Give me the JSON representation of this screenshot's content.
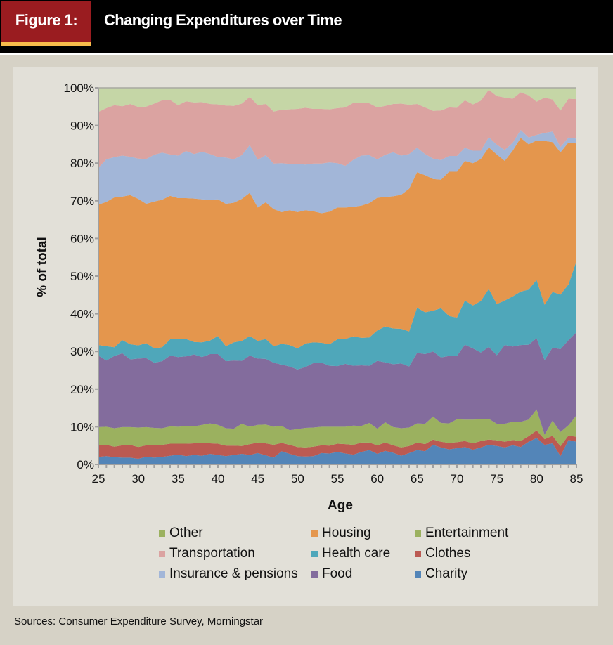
{
  "header": {
    "figure_label": "Figure 1:",
    "title": "Changing Expenditures over Time",
    "colors": {
      "label_bg": "#9a1c20",
      "label_underline": "#f7bc4c",
      "bar_bg": "#000000"
    }
  },
  "sources": "Sources: Consumer Expenditure Survey, Morningstar",
  "chart_data": {
    "type": "area",
    "stacked": true,
    "normalized": "percent",
    "title": "Changing Expenditures over Time",
    "xlabel": "Age",
    "ylabel": "% of total",
    "xlim": [
      25,
      85
    ],
    "ylim": [
      0,
      100
    ],
    "x_ticks": [
      25,
      30,
      35,
      40,
      45,
      50,
      55,
      60,
      65,
      70,
      75,
      80,
      85
    ],
    "x_tick_labels": [
      "25",
      "30",
      "35",
      "40",
      "45",
      "50",
      "55",
      "60",
      "65",
      "70",
      "75",
      "80",
      "85"
    ],
    "y_ticks": [
      0,
      10,
      20,
      30,
      40,
      50,
      60,
      70,
      80,
      90,
      100
    ],
    "y_tick_labels": [
      "0%",
      "10%",
      "20%",
      "30%",
      "40%",
      "50%",
      "60%",
      "70%",
      "80%",
      "90%",
      "100%"
    ],
    "grid": false,
    "legend": {
      "placement": "bottom",
      "columns": 3,
      "order": [
        "Other",
        "Housing",
        "Entertainment",
        "Transportation",
        "Health care",
        "Clothes",
        "Insurance & pensions",
        "Food",
        "Charity"
      ]
    },
    "x": [
      25,
      26,
      27,
      28,
      29,
      30,
      31,
      32,
      33,
      34,
      35,
      36,
      37,
      38,
      39,
      40,
      41,
      42,
      43,
      44,
      45,
      46,
      47,
      48,
      49,
      50,
      51,
      52,
      53,
      54,
      55,
      56,
      57,
      58,
      59,
      60,
      61,
      62,
      63,
      64,
      65,
      66,
      67,
      68,
      69,
      70,
      71,
      72,
      73,
      74,
      75,
      76,
      77,
      78,
      79,
      80,
      81,
      82,
      83,
      84,
      85
    ],
    "series_stack_order": [
      "Charity",
      "Clothes",
      "Entertainment",
      "Food",
      "Health care",
      "Housing",
      "Insurance & pensions",
      "Transportation",
      "Other"
    ],
    "series": [
      {
        "name": "Charity",
        "color": "#5385b8",
        "legend_color": "#5385b8",
        "values": [
          2.0,
          2.2,
          1.9,
          1.8,
          1.8,
          1.5,
          2.0,
          1.8,
          2.0,
          2.3,
          2.6,
          2.2,
          2.5,
          2.3,
          2.8,
          2.5,
          2.2,
          2.5,
          2.8,
          2.5,
          3.0,
          2.4,
          1.8,
          3.5,
          2.8,
          2.2,
          2.1,
          2.2,
          3.0,
          2.9,
          3.3,
          2.9,
          2.6,
          3.3,
          3.8,
          2.8,
          3.6,
          3.1,
          2.3,
          3.0,
          3.8,
          3.5,
          5.2,
          4.5,
          4.0,
          4.3,
          4.6,
          3.9,
          4.5,
          5.2,
          4.9,
          4.5,
          5.1,
          4.6,
          6.0,
          7.0,
          5.2,
          5.6,
          2.2,
          6.5,
          6.0
        ]
      },
      {
        "name": "Clothes",
        "color": "#bb5a52",
        "legend_color": "#bb5a52",
        "values": [
          3.2,
          3.0,
          2.8,
          3.3,
          3.4,
          3.1,
          3.1,
          3.4,
          3.2,
          3.2,
          2.9,
          3.3,
          3.1,
          3.3,
          2.8,
          3.0,
          2.8,
          2.5,
          2.1,
          2.9,
          2.8,
          3.2,
          3.4,
          2.2,
          2.4,
          2.4,
          2.4,
          2.5,
          2.1,
          2.1,
          2.2,
          2.5,
          2.6,
          2.5,
          2.0,
          2.3,
          2.2,
          2.0,
          2.2,
          1.9,
          2.0,
          1.9,
          1.4,
          1.5,
          1.7,
          1.6,
          1.6,
          1.7,
          1.7,
          1.4,
          1.5,
          1.5,
          1.4,
          1.6,
          1.5,
          2.0,
          1.5,
          2.0,
          2.6,
          1.2,
          1.3
        ]
      },
      {
        "name": "Entertainment",
        "color": "#9bb15f",
        "legend_color": "#9bb15f",
        "values": [
          4.7,
          4.8,
          4.9,
          4.8,
          4.7,
          5.2,
          4.8,
          4.5,
          4.4,
          4.6,
          4.5,
          4.7,
          4.5,
          4.9,
          5.3,
          5.0,
          4.6,
          4.5,
          5.9,
          4.6,
          4.7,
          5.0,
          4.8,
          4.5,
          3.9,
          4.8,
          5.2,
          5.1,
          4.9,
          5.0,
          4.5,
          4.6,
          5.1,
          4.4,
          5.2,
          4.4,
          5.4,
          4.8,
          5.1,
          4.9,
          5.1,
          5.4,
          6.1,
          5.0,
          5.2,
          6.1,
          5.7,
          6.3,
          5.8,
          5.5,
          4.4,
          4.8,
          4.8,
          5.1,
          4.4,
          5.6,
          1.2,
          4.0,
          3.8,
          2.7,
          5.7
        ]
      },
      {
        "name": "Food",
        "color": "#836c9d",
        "legend_color": "#836c9d",
        "values": [
          19.0,
          17.6,
          19.2,
          19.6,
          18.0,
          18.3,
          18.3,
          17.3,
          17.8,
          18.8,
          18.5,
          18.5,
          19.1,
          18.0,
          18.4,
          18.8,
          17.8,
          18.1,
          16.7,
          18.9,
          17.6,
          17.4,
          17.0,
          16.3,
          16.9,
          15.8,
          16.2,
          17.1,
          17.0,
          16.2,
          16.1,
          16.7,
          15.9,
          16.1,
          15.2,
          18.0,
          15.9,
          16.7,
          17.2,
          16.2,
          18.7,
          18.5,
          17.3,
          17.4,
          17.9,
          16.8,
          19.9,
          18.9,
          17.7,
          19.1,
          18.2,
          20.9,
          20.0,
          20.4,
          19.9,
          18.9,
          19.8,
          19.4,
          22.0,
          22.6,
          22.1
        ]
      },
      {
        "name": "Health care",
        "color": "#4fa7ba",
        "legend_color": "#4fa7ba",
        "values": [
          2.8,
          3.8,
          2.3,
          3.5,
          4.0,
          3.5,
          4.0,
          3.8,
          3.7,
          4.3,
          4.7,
          4.6,
          3.3,
          3.9,
          3.6,
          4.8,
          4.0,
          4.8,
          5.3,
          5.2,
          4.7,
          5.3,
          4.4,
          5.5,
          5.7,
          5.6,
          6.2,
          5.5,
          5.3,
          5.7,
          7.1,
          6.6,
          7.8,
          7.3,
          7.5,
          8.1,
          9.5,
          9.5,
          9.2,
          9.3,
          12.0,
          11.1,
          10.8,
          13.1,
          10.6,
          10.2,
          11.7,
          11.4,
          13.7,
          15.4,
          13.6,
          11.8,
          13.3,
          14.2,
          14.6,
          15.5,
          14.7,
          14.8,
          14.5,
          14.8,
          18.9
        ]
      },
      {
        "name": "Housing",
        "color": "#e4964d",
        "legend_color": "#e4964d",
        "values": [
          37.3,
          38.3,
          39.8,
          38.1,
          39.6,
          38.9,
          37.0,
          39.0,
          39.2,
          38.1,
          37.5,
          37.4,
          38.1,
          38.0,
          37.4,
          36.3,
          37.8,
          37.1,
          37.7,
          38.0,
          35.4,
          36.3,
          36.4,
          35.0,
          35.8,
          36.2,
          35.4,
          34.8,
          34.4,
          35.2,
          35.0,
          34.9,
          34.4,
          35.1,
          35.7,
          35.2,
          34.4,
          35.1,
          35.6,
          37.9,
          36.0,
          36.4,
          35.0,
          34.1,
          38.3,
          38.7,
          37.1,
          37.8,
          37.7,
          37.6,
          39.7,
          37.1,
          38.7,
          40.8,
          38.6,
          37.0,
          43.5,
          39.8,
          37.8,
          37.7,
          31.2
        ]
      },
      {
        "name": "Insurance & pensions",
        "color": "#a2b6d8",
        "legend_color": "#a2b6d8",
        "values": [
          9.8,
          11.3,
          10.7,
          10.9,
          10.2,
          10.7,
          11.9,
          12.4,
          12.5,
          11.0,
          11.3,
          12.5,
          11.8,
          12.6,
          12.1,
          11.2,
          12.3,
          11.5,
          11.6,
          12.7,
          12.7,
          12.5,
          12.1,
          13.0,
          12.3,
          12.8,
          12.1,
          12.7,
          13.2,
          13.1,
          11.8,
          11.1,
          12.5,
          13.3,
          12.7,
          10.2,
          11.2,
          11.7,
          10.4,
          9.2,
          6.5,
          5.6,
          5.4,
          5.2,
          4.2,
          4.2,
          3.5,
          3.3,
          2.2,
          2.7,
          2.6,
          2.9,
          2.1,
          2.1,
          1.8,
          1.5,
          2.1,
          2.8,
          1.4,
          1.3,
          1.3
        ]
      },
      {
        "name": "Transportation",
        "color": "#dba3a1",
        "legend_color": "#dba3a1",
        "values": [
          14.8,
          13.6,
          13.8,
          13.1,
          14.0,
          13.7,
          13.9,
          13.6,
          13.9,
          14.5,
          13.4,
          13.2,
          13.7,
          13.2,
          13.3,
          14.0,
          13.8,
          14.2,
          13.7,
          12.8,
          14.5,
          13.6,
          13.8,
          14.2,
          14.5,
          14.6,
          15.1,
          14.5,
          14.5,
          14.1,
          14.6,
          15.5,
          15.1,
          13.9,
          13.8,
          13.8,
          13.0,
          12.8,
          13.8,
          13.1,
          11.6,
          12.4,
          12.7,
          13.2,
          12.9,
          12.8,
          12.6,
          12.3,
          13.3,
          12.6,
          12.9,
          13.9,
          11.7,
          10.0,
          11.2,
          8.8,
          9.4,
          8.5,
          9.7,
          10.3,
          10.5
        ]
      },
      {
        "name": "Other",
        "color": "#c5d6a6",
        "legend_color": "#9bb15f",
        "values": [
          6.4,
          5.4,
          4.6,
          5.9,
          4.3,
          5.1,
          5.0,
          4.2,
          3.3,
          3.2,
          4.6,
          3.6,
          3.9,
          3.8,
          4.3,
          4.4,
          4.7,
          4.8,
          4.2,
          4.4,
          4.6,
          4.3,
          6.3,
          5.8,
          5.7,
          5.6,
          5.3,
          5.6,
          5.6,
          5.7,
          5.4,
          5.2,
          4.0,
          4.1,
          4.1,
          5.2,
          4.8,
          4.3,
          4.2,
          4.5,
          4.3,
          4.8,
          4.1,
          6.0,
          5.2,
          5.3,
          3.3,
          4.4,
          3.4,
          3.5,
          4.8,
          4.2,
          4.4,
          3.2,
          4.0,
          3.7,
          2.6,
          3.1,
          6.0,
          2.9,
          3.0
        ]
      }
    ]
  }
}
